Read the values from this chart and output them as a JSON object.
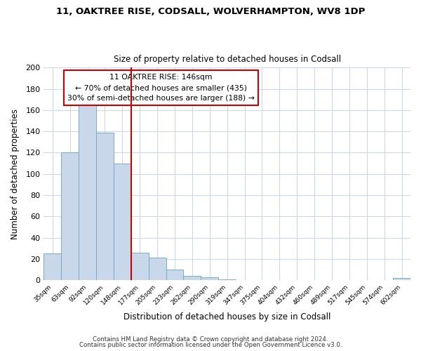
{
  "title1": "11, OAKTREE RISE, CODSALL, WOLVERHAMPTON, WV8 1DP",
  "title2": "Size of property relative to detached houses in Codsall",
  "xlabel": "Distribution of detached houses by size in Codsall",
  "ylabel": "Number of detached properties",
  "bar_color": "#c8d8ea",
  "bar_edge_color": "#7aaac8",
  "categories": [
    "35sqm",
    "63sqm",
    "92sqm",
    "120sqm",
    "148sqm",
    "177sqm",
    "205sqm",
    "233sqm",
    "262sqm",
    "290sqm",
    "319sqm",
    "347sqm",
    "375sqm",
    "404sqm",
    "432sqm",
    "460sqm",
    "489sqm",
    "517sqm",
    "545sqm",
    "574sqm",
    "602sqm"
  ],
  "values": [
    25,
    120,
    167,
    139,
    110,
    26,
    21,
    10,
    4,
    3,
    1,
    0,
    0,
    0,
    0,
    0,
    0,
    0,
    0,
    0,
    2
  ],
  "ylim": [
    0,
    200
  ],
  "yticks": [
    0,
    20,
    40,
    60,
    80,
    100,
    120,
    140,
    160,
    180,
    200
  ],
  "property_line_color": "#cc0000",
  "annotation_title": "11 OAKTREE RISE: 146sqm",
  "annotation_line1": "← 70% of detached houses are smaller (435)",
  "annotation_line2": "30% of semi-detached houses are larger (188) →",
  "annotation_box_color": "#ffffff",
  "annotation_box_edge": "#cc0000",
  "footer1": "Contains HM Land Registry data © Crown copyright and database right 2024.",
  "footer2": "Contains public sector information licensed under the Open Government Licence v3.0.",
  "background_color": "#ffffff",
  "grid_color": "#ccd8e4"
}
